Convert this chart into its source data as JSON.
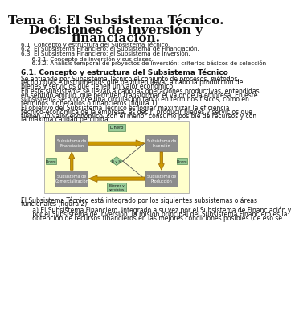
{
  "title_line1": "Tema 6: El Subsistema Técnico.",
  "title_line2": "Decisiones de inversión y",
  "title_line3": "financiación.",
  "toc": [
    "6.1. Concepto y estructura del Subsistema Técnico.",
    "6.2. El Subsistema Financiero: el Subsistema de Financiación.",
    "6.3. El Subsistema Financiero: el Subsistema de Inversión.",
    "      6.3.1. Concepto de inversión y sus clases.",
    "      6.3.2. Análisis temporal de proyectos de inversión: criterios básicos de selección"
  ],
  "section_title": "6.1. Concepto y estructura del Subsistema Técnico",
  "para1": "Se entiende por Subsistema Técnico el conjunto de procesos, métodos, tecnologías e instrumentos que permiten llevar a cabo la producción de bienes y servicios que tienen un valor económico.",
  "para2": "En este subsistema se llevan a cabo las operaciones productivas, entendidas en sentido amplio, que permiten transformar el valor de la empresa. En este subsistema se produce una circulación tanto en términos físicos, como en términos monetarios o financieros (figura 1).",
  "para3": "El objetivo del Subsistema Técnico es lograr maximizar la eficiencia técnico-económica de la empresa, es decir, producir bienes y servicios que tienen un valor económico, con el menor consumo posible de recursos y con la máxima calidad percibida.",
  "fig_bg": "#ffffcc",
  "box_gray": "#8c8c8c",
  "box_gray_dark": "#6e6e6e",
  "box_green": "#99cc99",
  "box_green_dark": "#558855",
  "box_arrow": "#cc9900",
  "box_arrow_edge": "#996600",
  "para_bottom1": "El Subsistema Técnico está integrado por los siguientes subsistemas o áreas funcionales (figura 2):",
  "para_bottom2a": "      a) El Subsistema Financiero, integrado a su vez por el Subsistema de Financiación y",
  "para_bottom2b": "      por el Subsistema de Inversión: la misión principal del Subsistema Financiero es la",
  "para_bottom2c": "      obtención de recursos financieros en las mejores condiciones posibles (de eso se",
  "bg_color": "#ffffff",
  "text_color": "#111111",
  "title_fontsize": 11,
  "body_fontsize": 5.5,
  "toc_fontsize": 5.2,
  "section_fontsize": 6.5
}
